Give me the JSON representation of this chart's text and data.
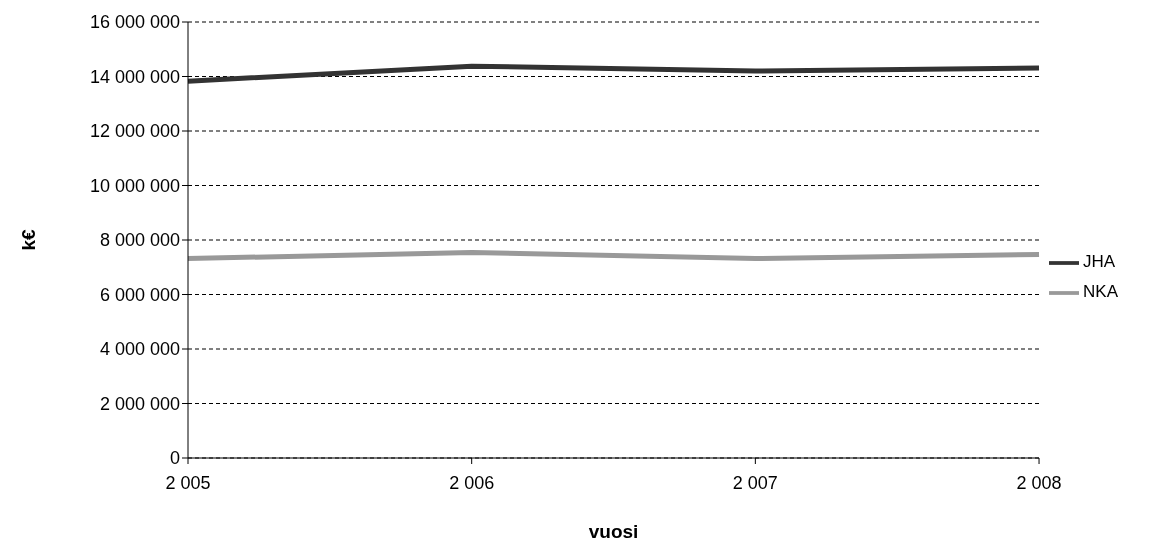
{
  "chart_data": {
    "type": "line",
    "xlabel": "vuosi",
    "ylabel": "k€",
    "categories": [
      "2 005",
      "2 006",
      "2 007",
      "2 008"
    ],
    "series": [
      {
        "name": "JHA",
        "color": "#333333",
        "values": [
          13830000,
          14380000,
          14200000,
          14310000
        ]
      },
      {
        "name": "NKA",
        "color": "#999999",
        "values": [
          7320000,
          7540000,
          7320000,
          7470000
        ]
      }
    ],
    "ylim": [
      0,
      16000000
    ],
    "yticks": [
      {
        "value": 0,
        "label": "0"
      },
      {
        "value": 2000000,
        "label": "2 000 000"
      },
      {
        "value": 4000000,
        "label": "4 000 000"
      },
      {
        "value": 6000000,
        "label": "6 000 000"
      },
      {
        "value": 8000000,
        "label": "8 000 000"
      },
      {
        "value": 10000000,
        "label": "10 000 000"
      },
      {
        "value": 12000000,
        "label": "12 000 000"
      },
      {
        "value": 14000000,
        "label": "14 000 000"
      },
      {
        "value": 16000000,
        "label": "16 000 000"
      }
    ],
    "grid": "y",
    "legend": "right",
    "marker": "none",
    "line_style": "solid"
  }
}
